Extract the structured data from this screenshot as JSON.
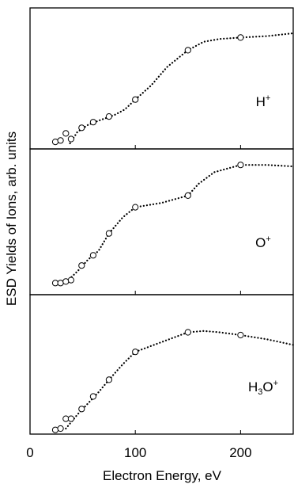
{
  "chart_data": {
    "type": "scatter",
    "xlabel": "Electron Energy, eV",
    "ylabel": "ESD Yields of Ions, arb. units",
    "xlim": [
      0,
      250
    ],
    "x_ticks": [
      "0",
      "100",
      "200"
    ],
    "x_tick_values": [
      0,
      100,
      200
    ],
    "grid": false,
    "panels": [
      {
        "label": "H",
        "label_sup": "+",
        "label_sub": "",
        "ylim": [
          0,
          1
        ],
        "points": [
          [
            24,
            0.05
          ],
          [
            29,
            0.06
          ],
          [
            34,
            0.11
          ],
          [
            39,
            0.07
          ],
          [
            49,
            0.15
          ],
          [
            60,
            0.19
          ],
          [
            75,
            0.23
          ],
          [
            100,
            0.35
          ],
          [
            150,
            0.7
          ],
          [
            200,
            0.79
          ]
        ],
        "curve": [
          [
            38,
            0.04
          ],
          [
            45,
            0.12
          ],
          [
            55,
            0.17
          ],
          [
            65,
            0.2
          ],
          [
            80,
            0.24
          ],
          [
            90,
            0.28
          ],
          [
            100,
            0.35
          ],
          [
            115,
            0.45
          ],
          [
            130,
            0.58
          ],
          [
            145,
            0.67
          ],
          [
            150,
            0.7
          ],
          [
            165,
            0.76
          ],
          [
            180,
            0.78
          ],
          [
            200,
            0.79
          ],
          [
            225,
            0.8
          ],
          [
            250,
            0.82
          ]
        ]
      },
      {
        "label": "O",
        "label_sup": "+",
        "label_sub": "",
        "ylim": [
          0,
          1
        ],
        "points": [
          [
            24,
            0.08
          ],
          [
            29,
            0.08
          ],
          [
            34,
            0.09
          ],
          [
            39,
            0.1
          ],
          [
            49,
            0.2
          ],
          [
            60,
            0.27
          ],
          [
            75,
            0.42
          ],
          [
            100,
            0.6
          ],
          [
            150,
            0.68
          ],
          [
            200,
            0.89
          ]
        ],
        "curve": [
          [
            35,
            0.09
          ],
          [
            45,
            0.16
          ],
          [
            55,
            0.24
          ],
          [
            65,
            0.3
          ],
          [
            75,
            0.42
          ],
          [
            88,
            0.53
          ],
          [
            100,
            0.6
          ],
          [
            125,
            0.63
          ],
          [
            150,
            0.68
          ],
          [
            160,
            0.76
          ],
          [
            175,
            0.84
          ],
          [
            200,
            0.89
          ],
          [
            225,
            0.89
          ],
          [
            250,
            0.88
          ]
        ]
      },
      {
        "label": "H",
        "label_sup": "+",
        "label_sub": "3",
        "label_mid": "O",
        "ylim": [
          0,
          1
        ],
        "points": [
          [
            24,
            0.03
          ],
          [
            29,
            0.04
          ],
          [
            34,
            0.11
          ],
          [
            39,
            0.11
          ],
          [
            49,
            0.18
          ],
          [
            60,
            0.27
          ],
          [
            75,
            0.39
          ],
          [
            100,
            0.59
          ],
          [
            150,
            0.73
          ],
          [
            200,
            0.71
          ]
        ],
        "curve": [
          [
            34,
            0.04
          ],
          [
            45,
            0.14
          ],
          [
            55,
            0.22
          ],
          [
            65,
            0.3
          ],
          [
            75,
            0.39
          ],
          [
            88,
            0.5
          ],
          [
            100,
            0.59
          ],
          [
            125,
            0.66
          ],
          [
            150,
            0.73
          ],
          [
            165,
            0.74
          ],
          [
            180,
            0.73
          ],
          [
            200,
            0.71
          ],
          [
            225,
            0.68
          ],
          [
            250,
            0.64
          ]
        ]
      }
    ]
  }
}
